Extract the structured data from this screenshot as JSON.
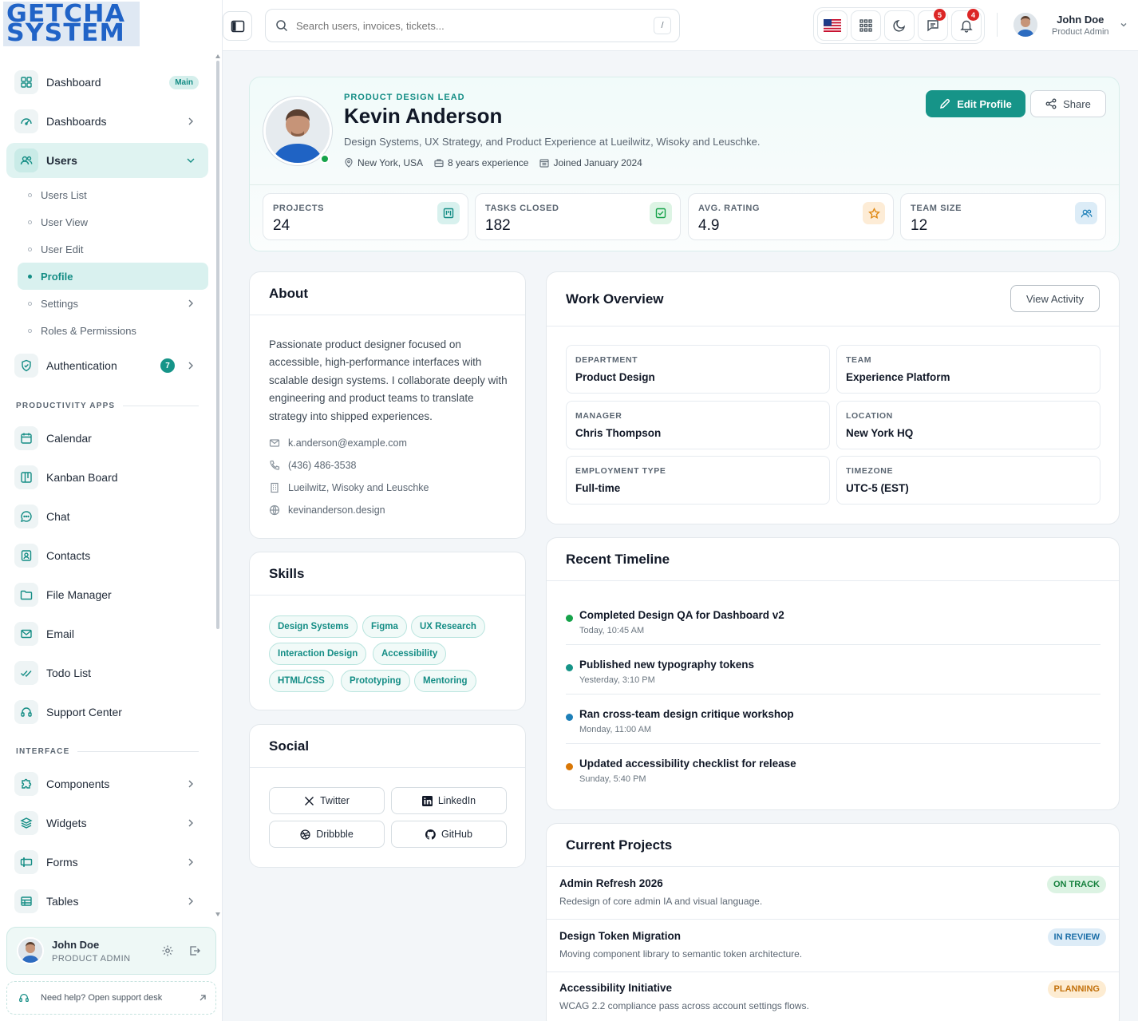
{
  "brand": {
    "line1": "GETCHA",
    "line2": "SYSTEM"
  },
  "topbar": {
    "search_placeholder": "Search users, invoices, tickets...",
    "search_shortcut": "/",
    "messages_count": "5",
    "notifications_count": "4",
    "user_name": "John Doe",
    "user_role": "Product Admin"
  },
  "sidebar": {
    "dashboard": {
      "label": "Dashboard",
      "badge": "Main"
    },
    "dashboards": {
      "label": "Dashboards"
    },
    "users": {
      "label": "Users"
    },
    "users_sub": [
      "Users List",
      "User View",
      "User Edit",
      "Profile",
      "Settings",
      "Roles & Permissions"
    ],
    "authentication": {
      "label": "Authentication",
      "badge": "7"
    },
    "section_productivity": "PRODUCTIVITY APPS",
    "productivity": [
      "Calendar",
      "Kanban Board",
      "Chat",
      "Contacts",
      "File Manager",
      "Email",
      "Todo List",
      "Support Center"
    ],
    "section_interface": "INTERFACE",
    "interface": [
      "Components",
      "Widgets",
      "Forms",
      "Tables"
    ],
    "user_card": {
      "name": "John Doe",
      "role": "PRODUCT ADMIN"
    },
    "help": "Need help? Open support desk"
  },
  "profile": {
    "role": "PRODUCT DESIGN LEAD",
    "name": "Kevin Anderson",
    "description": "Design Systems, UX Strategy, and Product Experience at Lueilwitz, Wisoky and Leuschke.",
    "location": "New York, USA",
    "experience": "8 years experience",
    "joined": "Joined January 2024",
    "edit_label": "Edit Profile",
    "share_label": "Share"
  },
  "stats": [
    {
      "label": "PROJECTS",
      "value": "24"
    },
    {
      "label": "TASKS CLOSED",
      "value": "182"
    },
    {
      "label": "AVG. RATING",
      "value": "4.9"
    },
    {
      "label": "TEAM SIZE",
      "value": "12"
    }
  ],
  "about": {
    "title": "About",
    "text": "Passionate product designer focused on accessible, high-performance interfaces with scalable design systems. I collaborate deeply with engineering and product teams to translate strategy into shipped experiences.",
    "email": "k.anderson@example.com",
    "phone": "(436) 486-3538",
    "company": "Lueilwitz, Wisoky and Leuschke",
    "website": "kevinanderson.design"
  },
  "skills": {
    "title": "Skills",
    "items": [
      "Design Systems",
      "Figma",
      "UX Research",
      "Interaction Design",
      "Accessibility",
      "HTML/CSS",
      "Prototyping",
      "Mentoring"
    ]
  },
  "social": {
    "title": "Social",
    "items": [
      "Twitter",
      "LinkedIn",
      "Dribbble",
      "GitHub"
    ]
  },
  "work": {
    "title": "Work Overview",
    "button": "View Activity",
    "fields": [
      {
        "k": "DEPARTMENT",
        "v": "Product Design"
      },
      {
        "k": "TEAM",
        "v": "Experience Platform"
      },
      {
        "k": "MANAGER",
        "v": "Chris Thompson"
      },
      {
        "k": "LOCATION",
        "v": "New York HQ"
      },
      {
        "k": "EMPLOYMENT TYPE",
        "v": "Full-time"
      },
      {
        "k": "TIMEZONE",
        "v": "UTC-5 (EST)"
      }
    ]
  },
  "timeline": {
    "title": "Recent Timeline",
    "items": [
      {
        "title": "Completed Design QA for Dashboard v2",
        "time": "Today, 10:45 AM",
        "color": "#16a34a"
      },
      {
        "title": "Published new typography tokens",
        "time": "Yesterday, 3:10 PM",
        "color": "#169488"
      },
      {
        "title": "Ran cross-team design critique workshop",
        "time": "Monday, 11:00 AM",
        "color": "#1d7fb8"
      },
      {
        "title": "Updated accessibility checklist for release",
        "time": "Sunday, 5:40 PM",
        "color": "#d97706"
      }
    ]
  },
  "projects": {
    "title": "Current Projects",
    "items": [
      {
        "title": "Admin Refresh 2026",
        "desc": "Redesign of core admin IA and visual language.",
        "status": "ON TRACK"
      },
      {
        "title": "Design Token Migration",
        "desc": "Moving component library to semantic token architecture.",
        "status": "IN REVIEW"
      },
      {
        "title": "Accessibility Initiative",
        "desc": "WCAG 2.2 compliance pass across account settings flows.",
        "status": "PLANNING"
      }
    ]
  },
  "colors": {
    "accent": "#169488",
    "accent_soft": "#dff3f1",
    "danger": "#dc2626"
  }
}
